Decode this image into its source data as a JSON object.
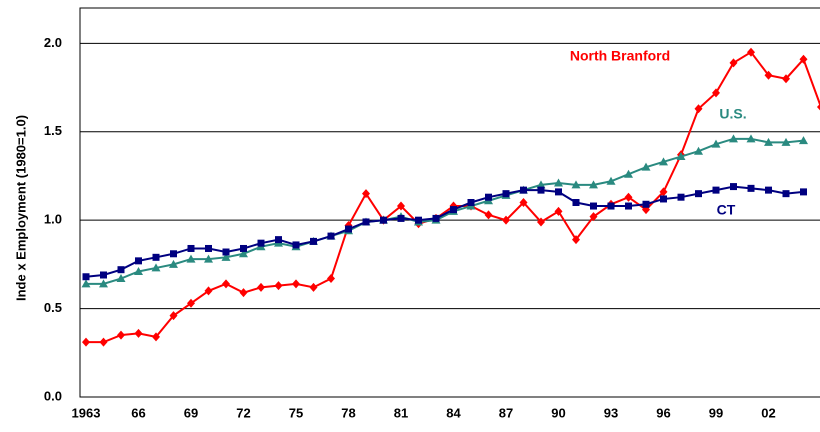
{
  "chart_data": {
    "type": "line",
    "y_label": "Inde x Employment (1980=1.0)",
    "categories": [
      "1963",
      null,
      null,
      "66",
      null,
      null,
      "69",
      null,
      null,
      "72",
      null,
      null,
      "75",
      null,
      null,
      "78",
      null,
      null,
      "81",
      null,
      null,
      "84",
      null,
      null,
      "87",
      null,
      null,
      "90",
      null,
      null,
      "93",
      null,
      null,
      "96",
      null,
      null,
      "99",
      null,
      null,
      "02",
      null,
      null,
      null
    ],
    "series": [
      {
        "name": "North Branford",
        "color": "#ff0000",
        "marker": "diamond",
        "values": [
          0.31,
          0.31,
          0.35,
          0.36,
          0.34,
          0.46,
          0.53,
          0.6,
          0.64,
          0.59,
          0.62,
          0.63,
          0.64,
          0.62,
          0.67,
          0.97,
          1.15,
          1.0,
          1.08,
          0.98,
          1.01,
          1.08,
          1.08,
          1.03,
          1.0,
          1.1,
          0.99,
          1.05,
          0.89,
          1.02,
          1.09,
          1.13,
          1.06,
          1.16,
          1.37,
          1.63,
          1.72,
          1.89,
          1.95,
          1.82,
          1.8,
          1.91,
          1.64
        ]
      },
      {
        "name": "U.S.",
        "color": "#2a8a80",
        "marker": "triangle",
        "values": [
          0.64,
          0.64,
          0.67,
          0.71,
          0.73,
          0.75,
          0.78,
          0.78,
          0.79,
          0.81,
          0.85,
          0.87,
          0.85,
          0.88,
          0.91,
          0.94,
          0.99,
          1.0,
          1.02,
          0.99,
          1.0,
          1.05,
          1.08,
          1.11,
          1.14,
          1.17,
          1.2,
          1.21,
          1.2,
          1.2,
          1.22,
          1.26,
          1.3,
          1.33,
          1.36,
          1.39,
          1.43,
          1.46,
          1.46,
          1.44,
          1.44,
          1.45,
          null
        ]
      },
      {
        "name": "CT",
        "color": "#000080",
        "marker": "square",
        "values": [
          0.68,
          0.69,
          0.72,
          0.77,
          0.79,
          0.81,
          0.84,
          0.84,
          0.82,
          0.84,
          0.87,
          0.89,
          0.86,
          0.88,
          0.91,
          0.95,
          0.99,
          1.0,
          1.01,
          1.0,
          1.01,
          1.06,
          1.1,
          1.13,
          1.15,
          1.17,
          1.17,
          1.16,
          1.1,
          1.08,
          1.08,
          1.08,
          1.09,
          1.12,
          1.13,
          1.15,
          1.17,
          1.19,
          1.18,
          1.17,
          1.15,
          1.16,
          null
        ]
      }
    ],
    "ylim": [
      0,
      2.2
    ],
    "yticks": [
      {
        "value": 0,
        "label": "0.0"
      },
      0.5,
      {
        "value": 1,
        "label": "1.0"
      },
      1.5,
      {
        "value": 2,
        "label": "2.0"
      }
    ],
    "grid": true
  }
}
